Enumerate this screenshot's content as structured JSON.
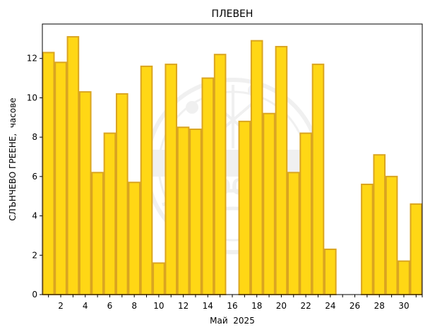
{
  "chart_data": {
    "type": "bar",
    "title": "ПЛЕВЕН",
    "xlabel": "Май  2025",
    "ylabel": "СЛЪНЧЕВО ГРЕЕНЕ,  часове",
    "x": [
      1,
      2,
      3,
      4,
      5,
      6,
      7,
      8,
      9,
      10,
      11,
      12,
      13,
      14,
      15,
      16,
      17,
      18,
      19,
      20,
      21,
      22,
      23,
      24,
      25,
      26,
      27,
      28,
      29,
      30,
      31
    ],
    "values": [
      12.3,
      11.8,
      13.1,
      10.3,
      6.2,
      8.2,
      10.2,
      5.7,
      11.6,
      1.6,
      11.7,
      8.5,
      8.4,
      11.0,
      12.2,
      0,
      8.8,
      12.9,
      9.2,
      12.6,
      6.2,
      8.2,
      11.7,
      2.3,
      0,
      0,
      5.6,
      7.1,
      6.0,
      1.7,
      4.6
    ],
    "xticks": [
      2,
      4,
      6,
      8,
      10,
      12,
      14,
      16,
      18,
      20,
      22,
      24,
      26,
      28,
      30
    ],
    "yticks": [
      0,
      2,
      4,
      6,
      8,
      10,
      12
    ],
    "xlim": [
      0.5,
      31.5
    ],
    "ylim": [
      0,
      13.75
    ],
    "bar_color": "#FFD715",
    "edge_color": "#DAA520",
    "grid": false,
    "watermark_text": "1890"
  }
}
